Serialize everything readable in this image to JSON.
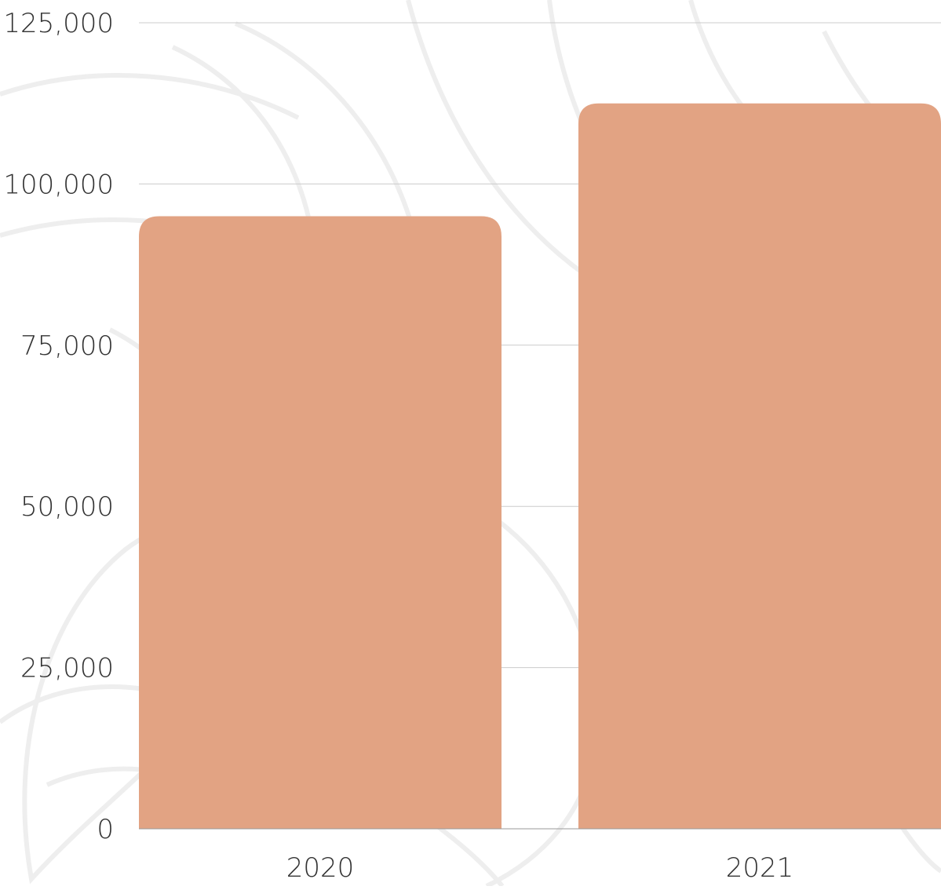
{
  "chart_data": {
    "type": "bar",
    "categories": [
      "2020",
      "2021"
    ],
    "values": [
      95000,
      112500
    ],
    "ylim": [
      0,
      125000
    ],
    "yticks": [
      0,
      25000,
      50000,
      75000,
      100000,
      125000
    ],
    "ytick_labels": [
      "0",
      "25,000",
      "50,000",
      "75,000",
      "100,000",
      "125,000"
    ],
    "grid": true,
    "colors": {
      "bar": "#e2a383",
      "grid": "#cccccc",
      "background_motif": "#eeeeee"
    }
  }
}
